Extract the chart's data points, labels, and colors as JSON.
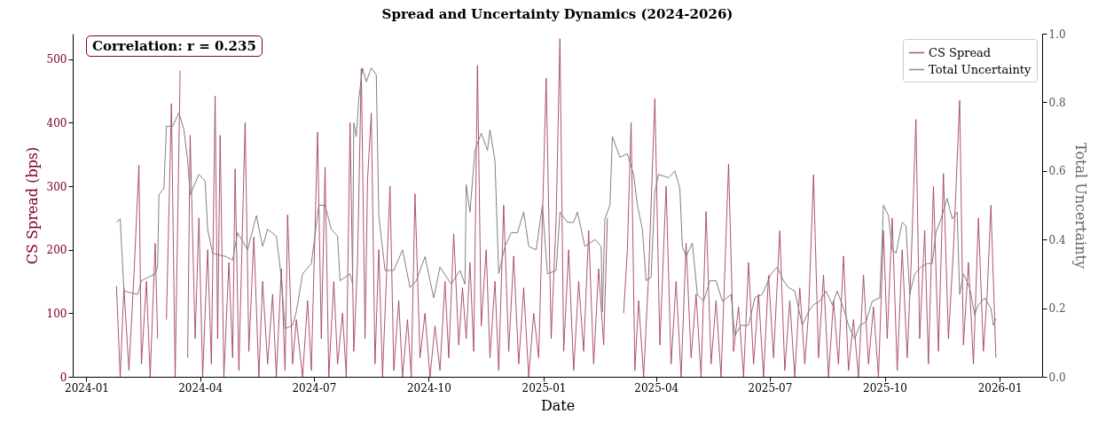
{
  "chart_data": {
    "type": "line",
    "title": "Spread and Uncertainty Dynamics (2024-2026)",
    "xlabel": "Date",
    "ylabel": "CS Spread (bps)",
    "y2label": "Total Uncertainty",
    "xlim": [
      "2023-12-21",
      "2026-02-04"
    ],
    "xticks": [
      "2024-01",
      "2024-04",
      "2024-07",
      "2024-10",
      "2025-01",
      "2025-04",
      "2025-07",
      "2025-10",
      "2026-01"
    ],
    "ylim": [
      0,
      540
    ],
    "yticks": [
      0,
      100,
      200,
      300,
      400,
      500
    ],
    "y2lim": [
      0,
      1
    ],
    "y2ticks": [
      {
        "value": 0,
        "label": "0.0"
      },
      {
        "value": 0.2,
        "label": "0.2"
      },
      {
        "value": 0.4,
        "label": "0.4"
      },
      {
        "value": 0.6,
        "label": "0.6"
      },
      {
        "value": 0.8,
        "label": "0.8"
      },
      {
        "value": 1,
        "label": "1.0"
      }
    ],
    "legend": "top right",
    "annotations": [
      "Correlation: r = 0.235"
    ],
    "series": [
      {
        "name": "CS Spread",
        "color": "#a3435f",
        "x": [
          "2024-01-25",
          "2024-01-28",
          "2024-01-31",
          "2024-02-04",
          "2024-02-08",
          "2024-02-12",
          "2024-02-14",
          "2024-02-18",
          "2024-02-21",
          "2024-02-25",
          "2024-02-27",
          "2024-03-02",
          "2024-03-05",
          "2024-03-09",
          "2024-03-12",
          "2024-03-16",
          "2024-03-19",
          "2024-03-22",
          "2024-03-24",
          "2024-03-28",
          "2024-03-31",
          "2024-04-03",
          "2024-04-07",
          "2024-04-10",
          "2024-04-13",
          "2024-04-15",
          "2024-04-17",
          "2024-04-20",
          "2024-04-24",
          "2024-04-27",
          "2024-04-29",
          "2024-05-02",
          "2024-05-07",
          "2024-05-10",
          "2024-05-14",
          "2024-05-18",
          "2024-05-21",
          "2024-05-25",
          "2024-05-29",
          "2024-06-01",
          "2024-06-05",
          "2024-06-08",
          "2024-06-10",
          "2024-06-14",
          "2024-06-17",
          "2024-06-22",
          "2024-06-26",
          "2024-06-29",
          "2024-07-04",
          "2024-07-07",
          "2024-07-10",
          "2024-07-13",
          "2024-07-17",
          "2024-07-20",
          "2024-07-24",
          "2024-07-27",
          "2024-07-30",
          "2024-08-02",
          "2024-08-05",
          "2024-08-08",
          "2024-08-11",
          "2024-08-13",
          "2024-08-16",
          "2024-08-19",
          "2024-08-22",
          "2024-08-25",
          "2024-08-28",
          "2024-08-31",
          "2024-09-03",
          "2024-09-07",
          "2024-09-10",
          "2024-09-14",
          "2024-09-17",
          "2024-09-20",
          "2024-09-24",
          "2024-09-28",
          "2024-10-02",
          "2024-10-06",
          "2024-10-10",
          "2024-10-14",
          "2024-10-17",
          "2024-10-21",
          "2024-10-25",
          "2024-10-28",
          "2024-10-31",
          "2024-11-03",
          "2024-11-06",
          "2024-11-09",
          "2024-11-12",
          "2024-11-16",
          "2024-11-19",
          "2024-11-23",
          "2024-11-26",
          "2024-11-30",
          "2024-12-04",
          "2024-12-08",
          "2024-12-12",
          "2024-12-16",
          "2024-12-20",
          "2024-12-24",
          "2024-12-28",
          "2025-01-03",
          "2025-01-07",
          "2025-01-11",
          "2025-01-14",
          "2025-01-17",
          "2025-01-21",
          "2025-01-25",
          "2025-01-29",
          "2025-02-02",
          "2025-02-06",
          "2025-02-10",
          "2025-02-14",
          "2025-02-18",
          "2025-02-21",
          "2025-02-24",
          "2025-03-03",
          "2025-03-06",
          "2025-03-09",
          "2025-03-12",
          "2025-03-15",
          "2025-03-18",
          "2025-03-22",
          "2025-03-26",
          "2025-03-31",
          "2025-04-04",
          "2025-04-09",
          "2025-04-13",
          "2025-04-17",
          "2025-04-21",
          "2025-04-25",
          "2025-04-29",
          "2025-05-03",
          "2025-05-07",
          "2025-05-11",
          "2025-05-15",
          "2025-05-19",
          "2025-05-23",
          "2025-05-29",
          "2025-06-02",
          "2025-06-06",
          "2025-06-10",
          "2025-06-14",
          "2025-06-18",
          "2025-06-22",
          "2025-06-26",
          "2025-06-30",
          "2025-07-04",
          "2025-07-09",
          "2025-07-13",
          "2025-07-17",
          "2025-07-21",
          "2025-07-25",
          "2025-07-29",
          "2025-08-01",
          "2025-08-05",
          "2025-08-09",
          "2025-08-13",
          "2025-08-17",
          "2025-08-21",
          "2025-08-25",
          "2025-08-29",
          "2025-09-02",
          "2025-09-06",
          "2025-09-10",
          "2025-09-14",
          "2025-09-18",
          "2025-09-22",
          "2025-09-26",
          "2025-09-30",
          "2025-10-03",
          "2025-10-07",
          "2025-10-11",
          "2025-10-15",
          "2025-10-19",
          "2025-10-22",
          "2025-10-26",
          "2025-10-29",
          "2025-11-02",
          "2025-11-05",
          "2025-11-09",
          "2025-11-13",
          "2025-11-17",
          "2025-11-21",
          "2025-11-25",
          "2025-11-30",
          "2025-12-03",
          "2025-12-07",
          "2025-12-11",
          "2025-12-15",
          "2025-12-19",
          "2025-12-22",
          "2025-12-25",
          "2025-12-29"
        ],
        "values": [
          143,
          0,
          140,
          10,
          160,
          333,
          20,
          150,
          0,
          210,
          60,
          null,
          90,
          430,
          0,
          482,
          null,
          30,
          380,
          60,
          250,
          0,
          200,
          20,
          442,
          60,
          380,
          0,
          180,
          30,
          327,
          10,
          400,
          40,
          220,
          0,
          150,
          20,
          130,
          0,
          170,
          10,
          255,
          20,
          90,
          0,
          120,
          10,
          385,
          60,
          330,
          0,
          150,
          20,
          100,
          0,
          400,
          40,
          180,
          485,
          60,
          310,
          415,
          20,
          200,
          0,
          150,
          300,
          10,
          120,
          0,
          90,
          0,
          288,
          30,
          100,
          0,
          80,
          10,
          150,
          30,
          225,
          50,
          140,
          60,
          180,
          40,
          490,
          80,
          200,
          30,
          150,
          10,
          270,
          40,
          190,
          20,
          140,
          0,
          100,
          30,
          470,
          60,
          250,
          532,
          40,
          200,
          10,
          150,
          40,
          230,
          20,
          170,
          50,
          250,
          null,
          null,
          100,
          200,
          400,
          10,
          120,
          0,
          160,
          438,
          50,
          300,
          20,
          150,
          0,
          210,
          30,
          130,
          0,
          260,
          20,
          120,
          0,
          335,
          40,
          110,
          0,
          180,
          20,
          130,
          0,
          160,
          30,
          230,
          10,
          120,
          0,
          140,
          20,
          100,
          318,
          30,
          160,
          0,
          120,
          20,
          190,
          10,
          90,
          0,
          160,
          20,
          110,
          0,
          230,
          60,
          250,
          10,
          200,
          30,
          170,
          405,
          60,
          230,
          20,
          300,
          40,
          320,
          60,
          200,
          435,
          50,
          180,
          20,
          250,
          40,
          130,
          270,
          30
        ]
      },
      {
        "name": "Total Uncertainty",
        "color": "#808080",
        "axis": "y2",
        "x": [
          "2024-01-25",
          "2024-01-28",
          "2024-01-31",
          "2024-02-11",
          "2024-02-14",
          "2024-02-25",
          "2024-02-27",
          "2024-02-28",
          "2024-03-03",
          "2024-03-05",
          "2024-03-10",
          "2024-03-15",
          "2024-03-19",
          "2024-03-22",
          "2024-03-24",
          "2024-03-31",
          "2024-04-05",
          "2024-04-07",
          "2024-04-11",
          "2024-04-22",
          "2024-04-27",
          "2024-05-01",
          "2024-05-09",
          "2024-05-16",
          "2024-05-21",
          "2024-05-25",
          "2024-06-01",
          "2024-06-05",
          "2024-06-08",
          "2024-06-14",
          "2024-06-17",
          "2024-06-22",
          "2024-06-29",
          "2024-07-05",
          "2024-07-10",
          "2024-07-15",
          "2024-07-20",
          "2024-07-22",
          "2024-07-30",
          "2024-08-01",
          "2024-08-02",
          "2024-08-04",
          "2024-08-06",
          "2024-08-09",
          "2024-08-12",
          "2024-08-16",
          "2024-08-20",
          "2024-08-22",
          "2024-08-27",
          "2024-09-03",
          "2024-09-10",
          "2024-09-16",
          "2024-09-21",
          "2024-09-28",
          "2024-10-05",
          "2024-10-10",
          "2024-10-19",
          "2024-10-26",
          "2024-10-30",
          "2024-10-31",
          "2024-11-03",
          "2024-11-07",
          "2024-11-12",
          "2024-11-17",
          "2024-11-19",
          "2024-11-23",
          "2024-11-26",
          "2024-12-01",
          "2024-12-06",
          "2024-12-11",
          "2024-12-16",
          "2024-12-20",
          "2024-12-26",
          "2024-12-31",
          "2025-01-04",
          "2025-01-11",
          "2025-01-14",
          "2025-01-20",
          "2025-01-25",
          "2025-01-28",
          "2025-02-03",
          "2025-02-11",
          "2025-02-16",
          "2025-02-17",
          "2025-02-19",
          "2025-02-23",
          "2025-02-25",
          "2025-03-03",
          "2025-03-09",
          "2025-03-14",
          "2025-03-17",
          "2025-03-21",
          "2025-03-24",
          "2025-03-28",
          "2025-03-31",
          "2025-04-03",
          "2025-04-11",
          "2025-04-16",
          "2025-04-20",
          "2025-04-22",
          "2025-04-25",
          "2025-04-30",
          "2025-05-04",
          "2025-05-09",
          "2025-05-14",
          "2025-05-19",
          "2025-05-24",
          "2025-05-31",
          "2025-06-03",
          "2025-06-08",
          "2025-06-14",
          "2025-06-19",
          "2025-06-25",
          "2025-07-02",
          "2025-07-07",
          "2025-07-12",
          "2025-07-16",
          "2025-07-21",
          "2025-07-27",
          "2025-08-01",
          "2025-08-05",
          "2025-08-10",
          "2025-08-15",
          "2025-08-20",
          "2025-08-24",
          "2025-08-29",
          "2025-09-02",
          "2025-09-07",
          "2025-09-11",
          "2025-09-16",
          "2025-09-21",
          "2025-09-27",
          "2025-09-30",
          "2025-10-04",
          "2025-10-07",
          "2025-10-10",
          "2025-10-15",
          "2025-10-18",
          "2025-10-21",
          "2025-10-25",
          "2025-10-30",
          "2025-11-04",
          "2025-11-08",
          "2025-11-11",
          "2025-11-15",
          "2025-11-20",
          "2025-11-24",
          "2025-11-28",
          "2025-11-30",
          "2025-12-03",
          "2025-12-08",
          "2025-12-12",
          "2025-12-15",
          "2025-12-20",
          "2025-12-25",
          "2025-12-27",
          "2025-12-29"
        ],
        "values": [
          0.45,
          0.46,
          0.25,
          0.24,
          0.28,
          0.3,
          0.32,
          0.53,
          0.55,
          0.73,
          0.73,
          0.77,
          0.72,
          0.63,
          0.53,
          0.59,
          0.57,
          0.43,
          0.36,
          0.35,
          0.34,
          0.42,
          0.37,
          0.47,
          0.38,
          0.43,
          0.41,
          0.29,
          0.14,
          0.15,
          0.19,
          0.3,
          0.33,
          0.5,
          0.5,
          0.43,
          0.41,
          0.28,
          0.3,
          0.27,
          0.74,
          0.7,
          0.81,
          0.9,
          0.86,
          0.9,
          0.88,
          0.47,
          0.31,
          0.31,
          0.37,
          0.26,
          0.28,
          0.35,
          0.23,
          0.32,
          0.27,
          0.31,
          0.27,
          0.56,
          0.48,
          0.66,
          0.71,
          0.66,
          0.72,
          0.63,
          0.3,
          0.38,
          0.42,
          0.42,
          0.48,
          0.38,
          0.37,
          0.5,
          0.3,
          0.31,
          0.48,
          0.45,
          0.45,
          0.48,
          0.38,
          0.4,
          0.38,
          0.19,
          0.46,
          0.5,
          0.7,
          0.64,
          0.65,
          0.59,
          0.5,
          0.43,
          0.28,
          0.29,
          0.54,
          0.59,
          0.58,
          0.6,
          0.55,
          0.38,
          0.35,
          0.39,
          0.24,
          0.22,
          0.28,
          0.28,
          0.22,
          0.24,
          0.12,
          0.15,
          0.15,
          0.23,
          0.24,
          0.3,
          0.32,
          0.28,
          0.26,
          0.25,
          0.15,
          0.19,
          0.21,
          0.22,
          0.25,
          0.21,
          0.25,
          0.2,
          0.15,
          0.11,
          0.15,
          0.16,
          0.22,
          0.23,
          0.5,
          0.47,
          0.37,
          0.36,
          0.45,
          0.44,
          0.24,
          0.3,
          0.32,
          0.33,
          0.33,
          0.42,
          0.46,
          0.52,
          0.46,
          0.48,
          0.24,
          0.3,
          0.26,
          0.18,
          0.21,
          0.23,
          0.2,
          0.15,
          0.17
        ]
      }
    ]
  }
}
